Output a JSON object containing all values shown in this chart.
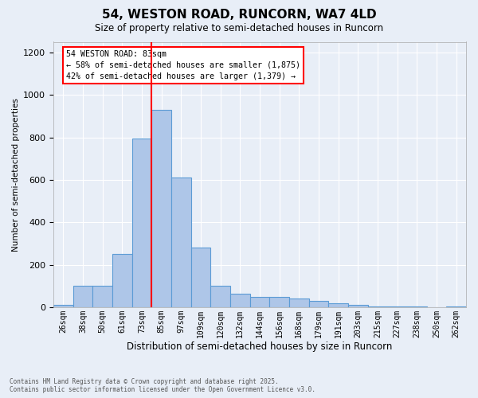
{
  "title": "54, WESTON ROAD, RUNCORN, WA7 4LD",
  "subtitle": "Size of property relative to semi-detached houses in Runcorn",
  "xlabel": "Distribution of semi-detached houses by size in Runcorn",
  "ylabel": "Number of semi-detached properties",
  "categories": [
    "26sqm",
    "38sqm",
    "50sqm",
    "61sqm",
    "73sqm",
    "85sqm",
    "97sqm",
    "109sqm",
    "120sqm",
    "132sqm",
    "144sqm",
    "156sqm",
    "168sqm",
    "179sqm",
    "191sqm",
    "203sqm",
    "215sqm",
    "227sqm",
    "238sqm",
    "250sqm",
    "262sqm"
  ],
  "values": [
    10,
    100,
    100,
    250,
    795,
    930,
    610,
    280,
    100,
    65,
    50,
    50,
    40,
    30,
    18,
    12,
    5,
    3,
    2,
    1,
    5
  ],
  "bar_color": "#aec6e8",
  "bar_edge_color": "#5b9bd5",
  "bg_color": "#e8eef7",
  "grid_color": "#ffffff",
  "property_line_color": "red",
  "annotation_line1": "54 WESTON ROAD: 83sqm",
  "annotation_line2": "← 58% of semi-detached houses are smaller (1,875)",
  "annotation_line3": "42% of semi-detached houses are larger (1,379) →",
  "ylim": [
    0,
    1250
  ],
  "yticks": [
    0,
    200,
    400,
    600,
    800,
    1000,
    1200
  ],
  "footer_line1": "Contains HM Land Registry data © Crown copyright and database right 2025.",
  "footer_line2": "Contains public sector information licensed under the Open Government Licence v3.0.",
  "red_line_index": 4.5,
  "bar_width": 1.0
}
